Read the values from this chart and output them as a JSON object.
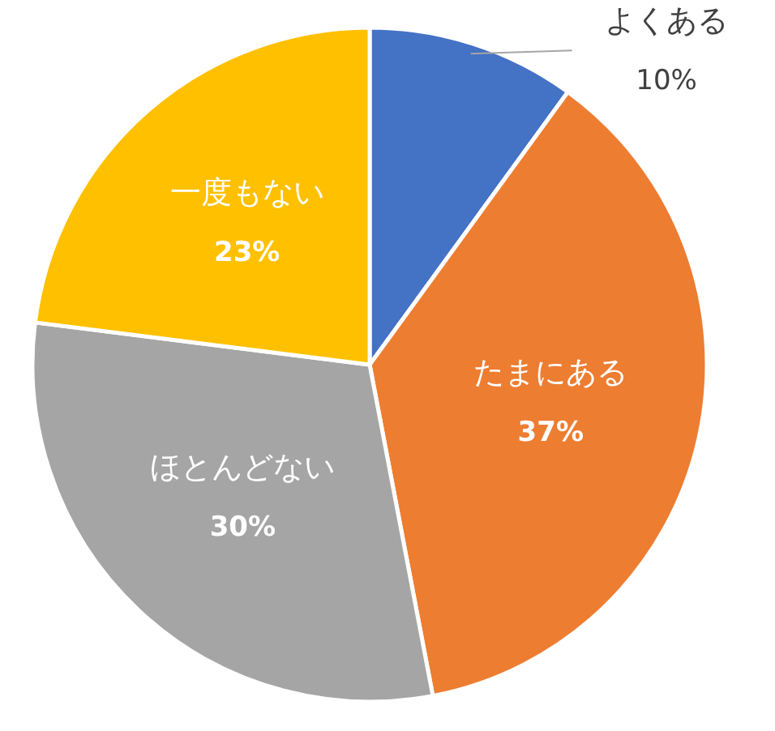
{
  "chart_data": {
    "type": "pie",
    "categories": [
      "よくある",
      "たまにある",
      "ほとんどない",
      "一度もない"
    ],
    "values": [
      10,
      37,
      30,
      23
    ],
    "colors": [
      "#4472c4",
      "#ed7d31",
      "#a5a5a5",
      "#ffc000"
    ],
    "value_labels": [
      "10%",
      "37%",
      "30%",
      "23%"
    ]
  }
}
